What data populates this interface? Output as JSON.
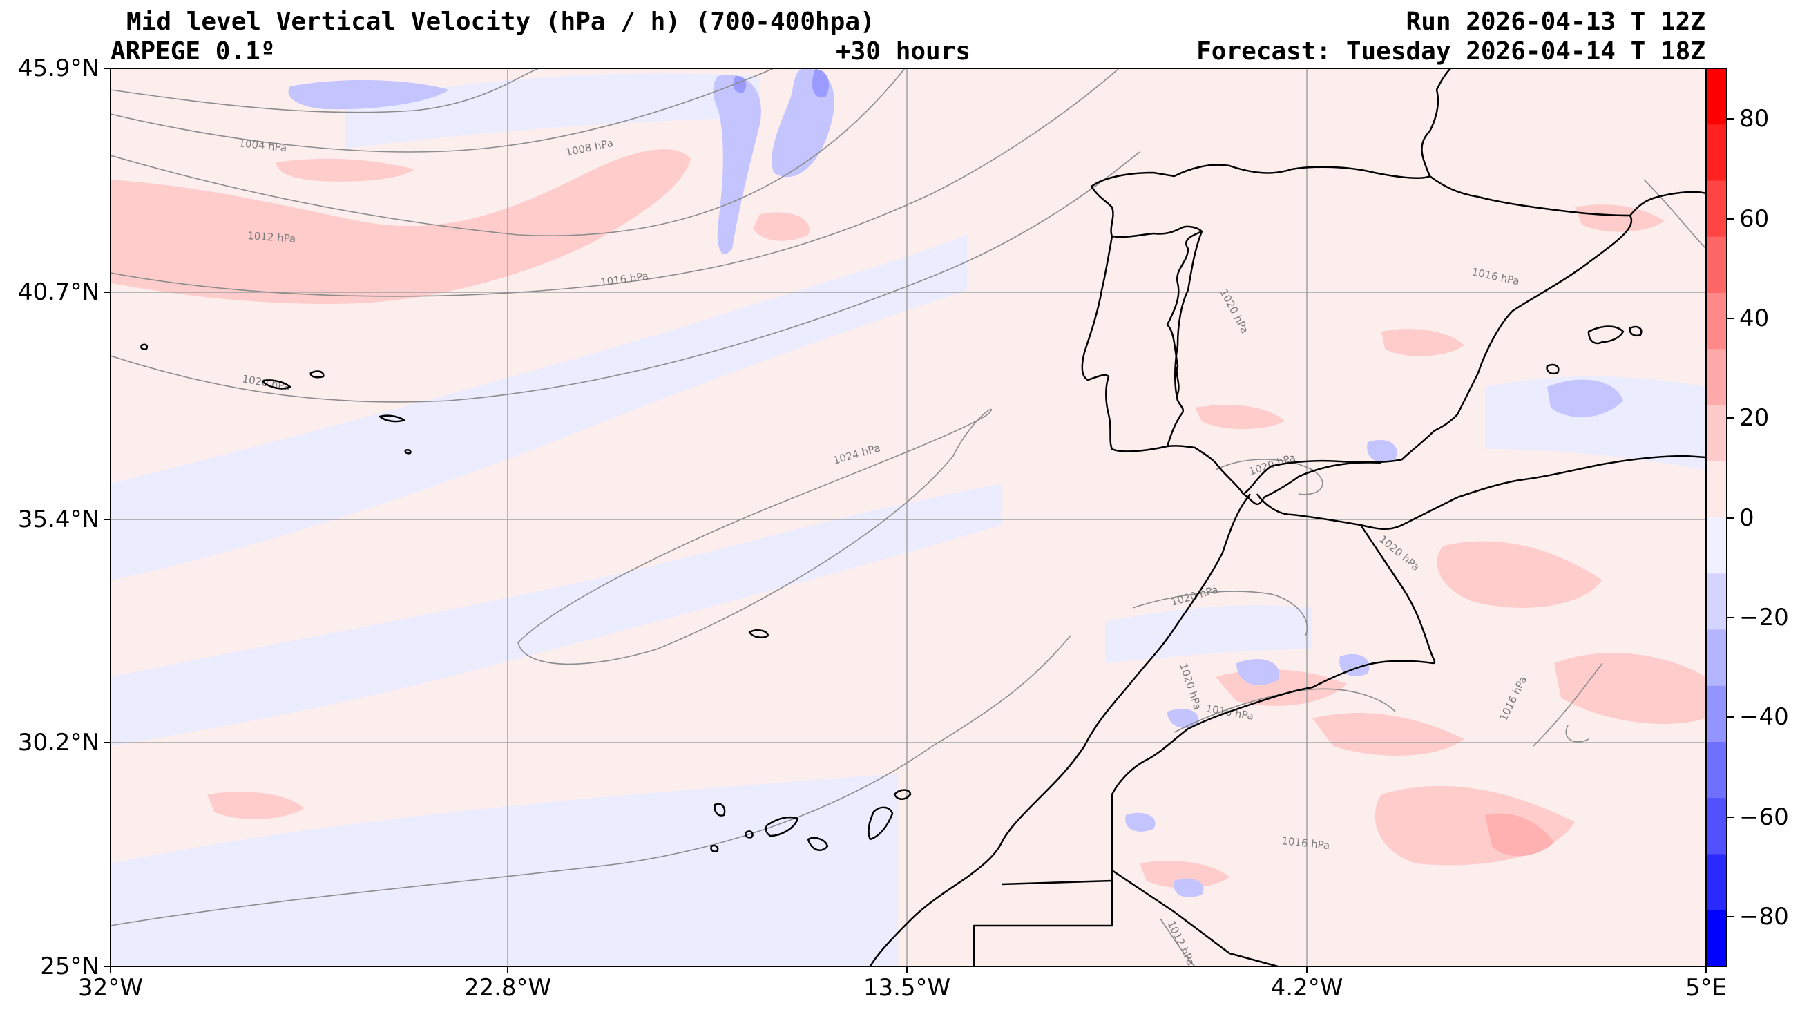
{
  "header": {
    "title": "Mid level Vertical Velocity (hPa / h)  (700-400hpa)",
    "model": "ARPEGE 0.1º",
    "lead_time": "+30 hours",
    "run": "Run 2026-04-13 T 12Z",
    "forecast": "Forecast: Tuesday 2026-04-14 T 18Z"
  },
  "axes": {
    "lat_ticks": [
      "45.9°N",
      "40.7°N",
      "35.4°N",
      "30.2°N",
      "25°N"
    ],
    "lon_ticks": [
      "32°W",
      "22.8°W",
      "13.5°W",
      "4.2°W",
      "5°E"
    ]
  },
  "colorbar": {
    "ticks": [
      "80",
      "60",
      "40",
      "20",
      "0",
      "−20",
      "−40",
      "−60",
      "−80"
    ],
    "colors_top_to_bottom": [
      "#ff0000",
      "#ff2020",
      "#ff4444",
      "#ff6666",
      "#ff8888",
      "#ffaaaa",
      "#ffcaca",
      "#ffe8e8",
      "#f0f0ff",
      "#d4d4ff",
      "#b4b4ff",
      "#9494ff",
      "#7070ff",
      "#5050ff",
      "#2a2aff",
      "#0000ff"
    ]
  },
  "isobar_labels": [
    "1004 hPa",
    "1008 hPa",
    "1012 hPa",
    "1016 hPa",
    "1020 hPa",
    "1024 hPa",
    "1020 hPa",
    "1020 hPa",
    "1016 hPa",
    "1020 hPa",
    "1016 hPa",
    "1016 hPa",
    "1012 hPa",
    "1016 hPa",
    "1020 hPa",
    "1020 hPa"
  ],
  "colors": {
    "positive_weak": "#ffe8e8",
    "positive": "#ffc4c4",
    "negative_weak": "#ececff",
    "negative": "#c4c4ff",
    "negative_strong": "#9a9aff",
    "coast": "#000000",
    "isobar": "#8c8c8c",
    "grid": "#a0a0a0"
  }
}
